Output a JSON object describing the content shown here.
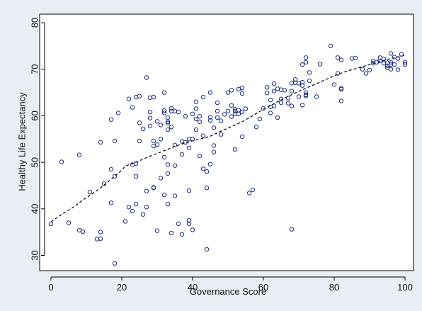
{
  "chart_data": {
    "type": "scatter",
    "xlabel": "Governance Score",
    "ylabel": "Healthy Life Expectancy",
    "xlim": [
      0,
      100
    ],
    "ylim": [
      28,
      80
    ],
    "xticks": [
      0,
      20,
      40,
      60,
      80,
      100
    ],
    "yticks": [
      30,
      40,
      50,
      60,
      70,
      80
    ],
    "grid": false,
    "colors": {
      "outer_background": "#e8eef4",
      "plot_background": "#ffffff",
      "marker": "#1a2a80",
      "trend_line": "#000000"
    },
    "series": [
      {
        "style": "hollow-circle",
        "points": [
          [
            0,
            36.8
          ],
          [
            3,
            50.1
          ],
          [
            5,
            37.0
          ],
          [
            8,
            51.6
          ],
          [
            8,
            35.4
          ],
          [
            9,
            35.1
          ],
          [
            11,
            43.6
          ],
          [
            13,
            33.5
          ],
          [
            14,
            33.6
          ],
          [
            14,
            54.3
          ],
          [
            14,
            35.0
          ],
          [
            15,
            45.4
          ],
          [
            17,
            48.5
          ],
          [
            17,
            41.3
          ],
          [
            17,
            59.2
          ],
          [
            18,
            54.6
          ],
          [
            18,
            28.3
          ],
          [
            18,
            47.0
          ],
          [
            19,
            60.6
          ],
          [
            21,
            37.3
          ],
          [
            22,
            40.4
          ],
          [
            22,
            63.6
          ],
          [
            23,
            61.8
          ],
          [
            23,
            39.5
          ],
          [
            23,
            49.5
          ],
          [
            24,
            41.0
          ],
          [
            24,
            49.7
          ],
          [
            24,
            47.0
          ],
          [
            24,
            64.0
          ],
          [
            25,
            54.6
          ],
          [
            25,
            58.5
          ],
          [
            25,
            64.2
          ],
          [
            26,
            57.2
          ],
          [
            26,
            38.8
          ],
          [
            27,
            68.2
          ],
          [
            27,
            40.4
          ],
          [
            27,
            43.8
          ],
          [
            28,
            60.8
          ],
          [
            28,
            59.5
          ],
          [
            28,
            63.9
          ],
          [
            28,
            57.8
          ],
          [
            29,
            44.5
          ],
          [
            29,
            44.6
          ],
          [
            29,
            53.5
          ],
          [
            29,
            64.0
          ],
          [
            29,
            54.6
          ],
          [
            30,
            35.3
          ],
          [
            30,
            53.8
          ],
          [
            30,
            58.8
          ],
          [
            31,
            46.6
          ],
          [
            31,
            55.0
          ],
          [
            31,
            58.0
          ],
          [
            32,
            51.1
          ],
          [
            32,
            43.0
          ],
          [
            32,
            65.0
          ],
          [
            32,
            61.1
          ],
          [
            32,
            60.6
          ],
          [
            33,
            41.0
          ],
          [
            33,
            49.5
          ],
          [
            33,
            47.6
          ],
          [
            33,
            57.0
          ],
          [
            33,
            58.7
          ],
          [
            33,
            58.4
          ],
          [
            33,
            59.6
          ],
          [
            34,
            57.6
          ],
          [
            34,
            34.8
          ],
          [
            34,
            61.0
          ],
          [
            34,
            61.6
          ],
          [
            35,
            61.0
          ],
          [
            35,
            42.8
          ],
          [
            35,
            49.3
          ],
          [
            35,
            53.7
          ],
          [
            36,
            36.8
          ],
          [
            36,
            60.8
          ],
          [
            37,
            51.7
          ],
          [
            37,
            54.5
          ],
          [
            37,
            34.5
          ],
          [
            38,
            59.9
          ],
          [
            38,
            54.3
          ],
          [
            39,
            37.5
          ],
          [
            39,
            43.9
          ],
          [
            39,
            36.8
          ],
          [
            39,
            55.0
          ],
          [
            39,
            53.1
          ],
          [
            40,
            60.4
          ],
          [
            40,
            35.5
          ],
          [
            40,
            55.0
          ],
          [
            41,
            63.0
          ],
          [
            41,
            59.3
          ],
          [
            41,
            61.5
          ],
          [
            41,
            57.0
          ],
          [
            42,
            58.7
          ],
          [
            42,
            51.4
          ],
          [
            42,
            59.9
          ],
          [
            43,
            64.0
          ],
          [
            43,
            48.6
          ],
          [
            43,
            55.7
          ],
          [
            44,
            31.3
          ],
          [
            44,
            48.0
          ],
          [
            44,
            44.5
          ],
          [
            45,
            49.6
          ],
          [
            45,
            59.0
          ],
          [
            45,
            59.7
          ],
          [
            45,
            65.0
          ],
          [
            46,
            57.4
          ],
          [
            46,
            52.2
          ],
          [
            46,
            53.6
          ],
          [
            47,
            62.8
          ],
          [
            47,
            61.0
          ],
          [
            47,
            59.6
          ],
          [
            48,
            58.9
          ],
          [
            48,
            56.0
          ],
          [
            49,
            60.3
          ],
          [
            50,
            61.0
          ],
          [
            50,
            65.0
          ],
          [
            51,
            65.5
          ],
          [
            51,
            59.8
          ],
          [
            51,
            62.2
          ],
          [
            52,
            52.8
          ],
          [
            52,
            61.0
          ],
          [
            52,
            60.4
          ],
          [
            52,
            61.4
          ],
          [
            53,
            61.2
          ],
          [
            53,
            65.7
          ],
          [
            53,
            60.4
          ],
          [
            54,
            55.5
          ],
          [
            54,
            60.8
          ],
          [
            54,
            64.8
          ],
          [
            54,
            66.0
          ],
          [
            55,
            61.5
          ],
          [
            56,
            43.4
          ],
          [
            57,
            44.1
          ],
          [
            58,
            57.6
          ],
          [
            59,
            59.3
          ],
          [
            60,
            61.6
          ],
          [
            61,
            64.9
          ],
          [
            61,
            66.1
          ],
          [
            62,
            61.9
          ],
          [
            62,
            60.6
          ],
          [
            62,
            63.4
          ],
          [
            63,
            62.1
          ],
          [
            63,
            66.9
          ],
          [
            63,
            65.3
          ],
          [
            64,
            65.8
          ],
          [
            64,
            59.6
          ],
          [
            65,
            65.6
          ],
          [
            65,
            62.8
          ],
          [
            65,
            63.6
          ],
          [
            66,
            65.5
          ],
          [
            67,
            63.8
          ],
          [
            67,
            62.7
          ],
          [
            68,
            35.6
          ],
          [
            68,
            67.0
          ],
          [
            68,
            65.3
          ],
          [
            68,
            62.1
          ],
          [
            69,
            67.1
          ],
          [
            69,
            67.8
          ],
          [
            70,
            67.0
          ],
          [
            70,
            64.1
          ],
          [
            71,
            66.5
          ],
          [
            71,
            62.3
          ],
          [
            71,
            71.0
          ],
          [
            71,
            67.2
          ],
          [
            72,
            64.5
          ],
          [
            72,
            71.5
          ],
          [
            72,
            72.5
          ],
          [
            72,
            65.0
          ],
          [
            72,
            64.3
          ],
          [
            73,
            67.5
          ],
          [
            73,
            69.3
          ],
          [
            75,
            64.1
          ],
          [
            76,
            71.1
          ],
          [
            79,
            75.0
          ],
          [
            80,
            66.7
          ],
          [
            81,
            69.1
          ],
          [
            81,
            72.5
          ],
          [
            82,
            72.0
          ],
          [
            82,
            65.7
          ],
          [
            82,
            65.9
          ],
          [
            82,
            63.2
          ],
          [
            85,
            72.3
          ],
          [
            86,
            72.4
          ],
          [
            88,
            70.0
          ],
          [
            89,
            69.1
          ],
          [
            90,
            69.8
          ],
          [
            91,
            71.3
          ],
          [
            91,
            71.8
          ],
          [
            92,
            71.5
          ],
          [
            93,
            71.8
          ],
          [
            93,
            72.5
          ],
          [
            94,
            71.3
          ],
          [
            94,
            72.2
          ],
          [
            95,
            70.7
          ],
          [
            95,
            71.4
          ],
          [
            95,
            70.3
          ],
          [
            96,
            73.4
          ],
          [
            96,
            71.5
          ],
          [
            96,
            71.0
          ],
          [
            96,
            70.0
          ],
          [
            97,
            72.6
          ],
          [
            97,
            71.0
          ],
          [
            98,
            69.9
          ],
          [
            98,
            72.3
          ],
          [
            99,
            73.2
          ],
          [
            100,
            71.5
          ],
          [
            100,
            71.0
          ]
        ]
      },
      {
        "style": "dashed-line",
        "points": [
          [
            0,
            37.2
          ],
          [
            3,
            38.8
          ],
          [
            6,
            40.2
          ],
          [
            9,
            41.9
          ],
          [
            12,
            43.4
          ],
          [
            15,
            45.1
          ],
          [
            18,
            47.0
          ],
          [
            20,
            48.3
          ],
          [
            21,
            49.2
          ],
          [
            24,
            50.0
          ],
          [
            27,
            51.0
          ],
          [
            30,
            51.9
          ],
          [
            33,
            52.8
          ],
          [
            36,
            53.7
          ],
          [
            39,
            54.4
          ],
          [
            42,
            55.0
          ],
          [
            45,
            55.6
          ],
          [
            48,
            56.7
          ],
          [
            51,
            57.7
          ],
          [
            54,
            58.7
          ],
          [
            57,
            60.0
          ],
          [
            60,
            61.4
          ],
          [
            63,
            62.6
          ],
          [
            66,
            63.8
          ],
          [
            69,
            64.9
          ],
          [
            72,
            65.9
          ],
          [
            75,
            66.9
          ],
          [
            78,
            67.9
          ],
          [
            81,
            68.9
          ],
          [
            84,
            69.7
          ],
          [
            87,
            70.3
          ],
          [
            90,
            71.0
          ],
          [
            93,
            71.7
          ],
          [
            96,
            72.3
          ],
          [
            100,
            73.0
          ]
        ]
      }
    ]
  }
}
